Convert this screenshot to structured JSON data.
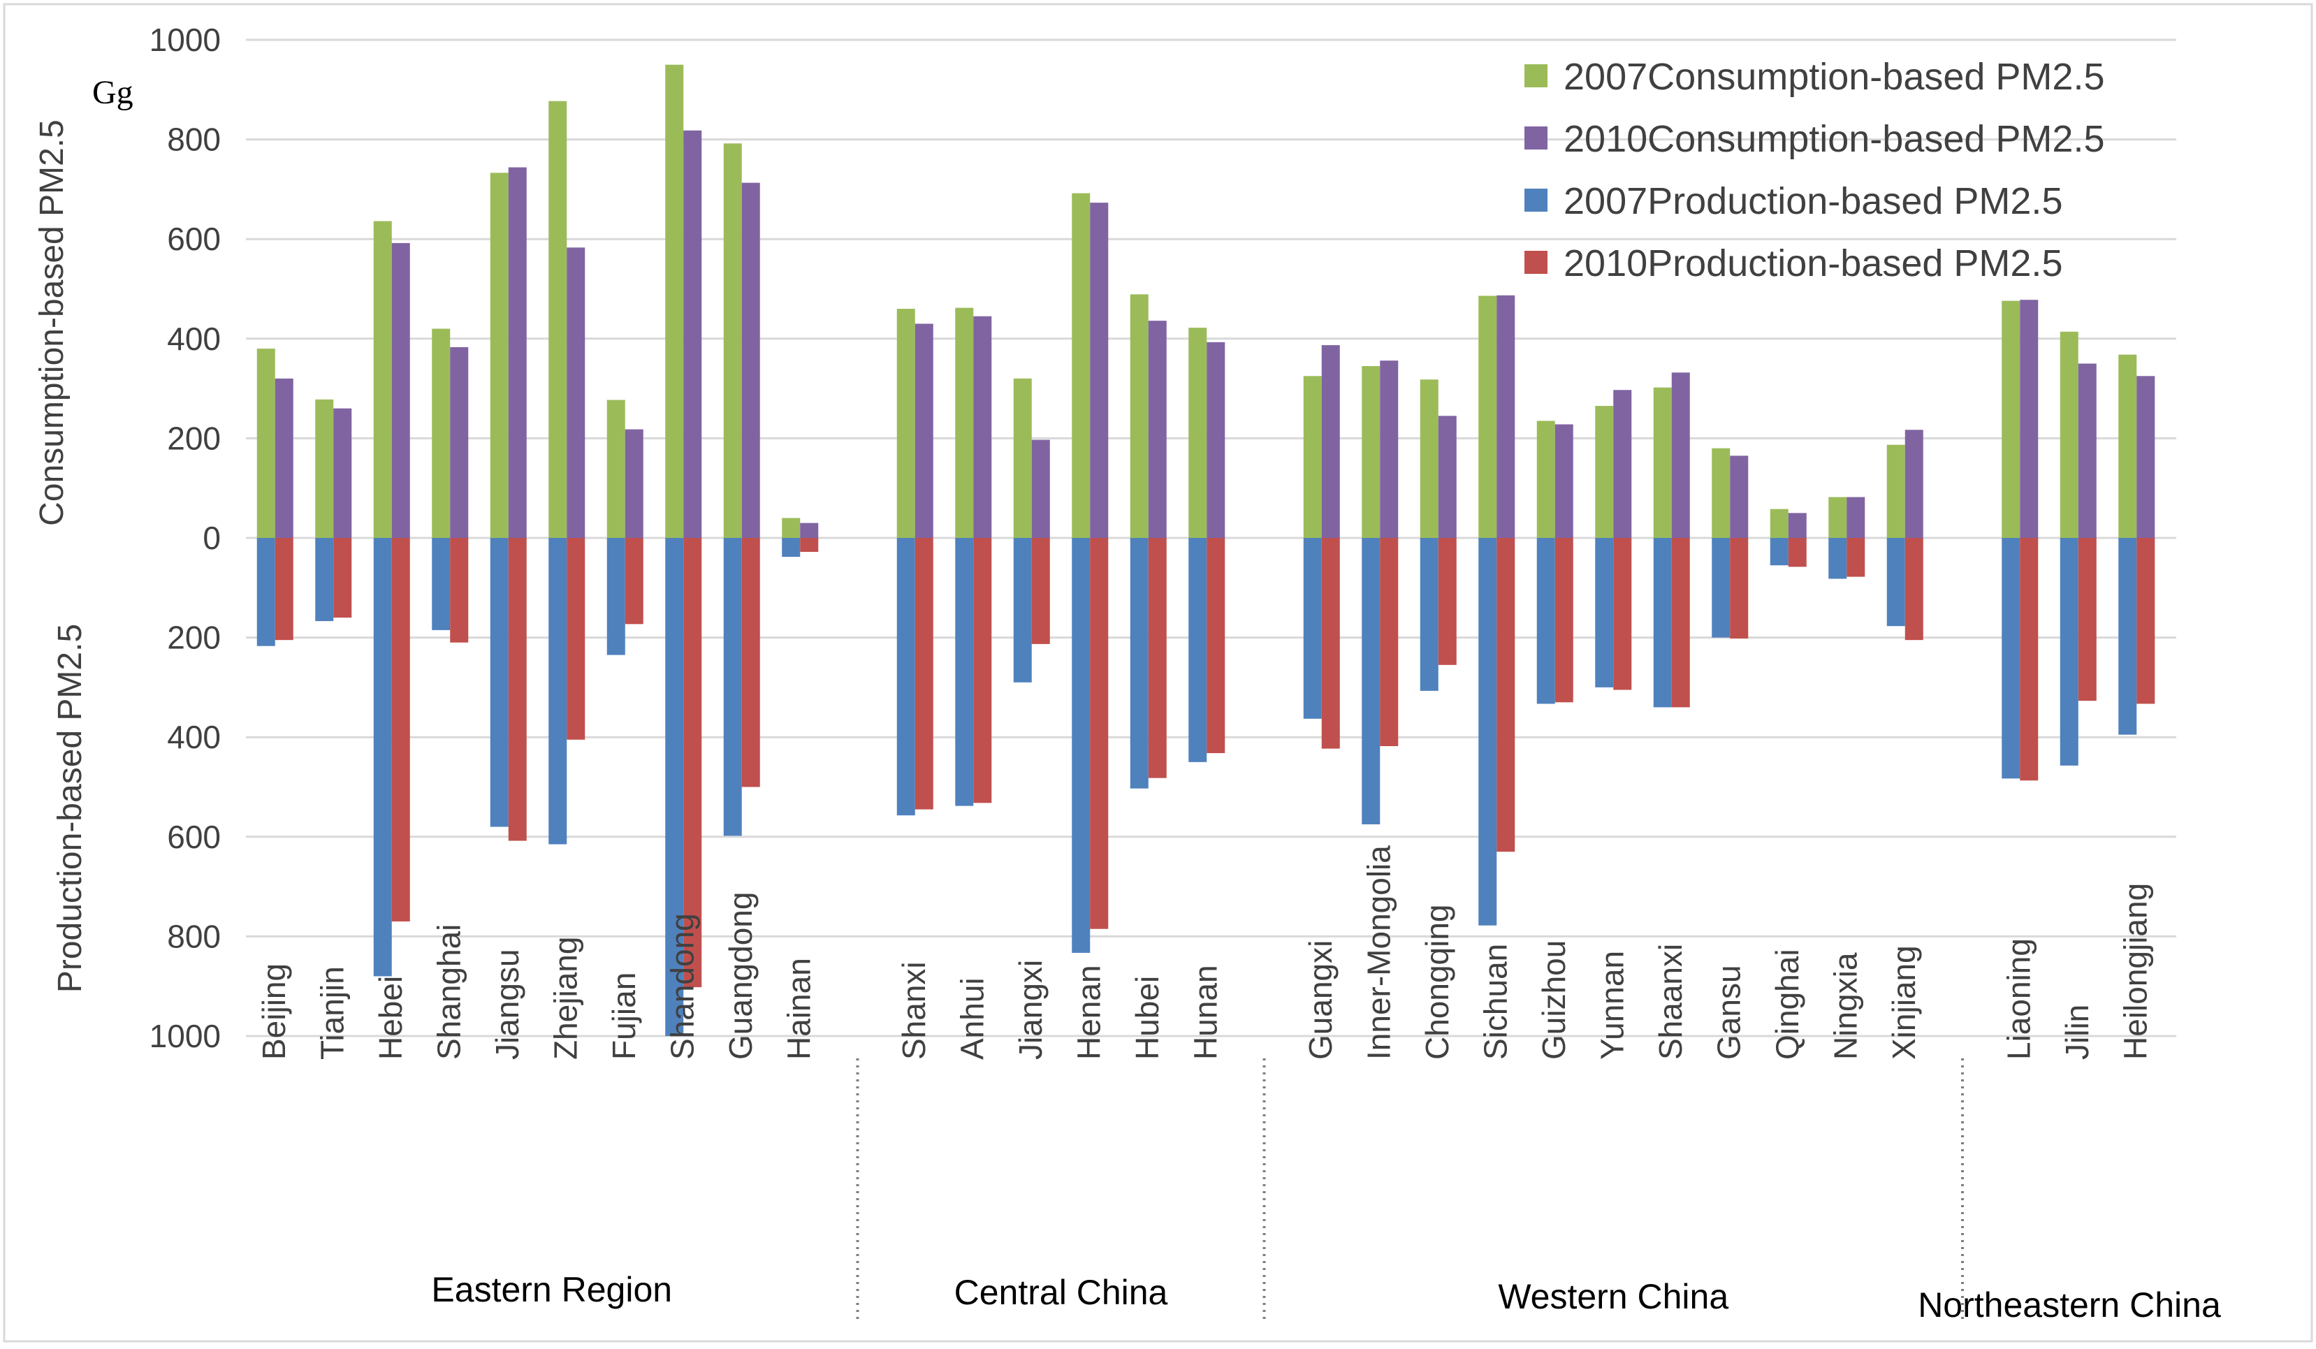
{
  "chart_data": {
    "type": "bar",
    "unit_label": "Gg",
    "ylabel_upper": "Consumption-based PM2.5",
    "ylabel_lower": "Production-based PM2.5",
    "ylim": [
      -1000,
      1000
    ],
    "yticks": [
      1000,
      800,
      600,
      400,
      200,
      0,
      200,
      400,
      600,
      800,
      1000
    ],
    "grid": true,
    "legend_position": "top-right",
    "colors": {
      "c2007": "#9BBB59",
      "c2010": "#8064A2",
      "p2007": "#4F81BD",
      "p2010": "#C0504D"
    },
    "categories": [
      "Beijing",
      "Tianjin",
      "Hebei",
      "Shanghai",
      "Jiangsu",
      "Zhejiang",
      "Fujian",
      "Shandong",
      "Guangdong",
      "Hainan",
      "Shanxi",
      "Anhui",
      "Jiangxi",
      "Henan",
      "Hubei",
      "Hunan",
      "Guangxi",
      "Inner-Mongolia",
      "Chongqing",
      "Sichuan",
      "Guizhou",
      "Yunnan",
      "Shaanxi",
      "Gansu",
      "Qinghai",
      "Ningxia",
      "Xinjiang",
      "Liaoning",
      "Jilin",
      "Heilongjiang"
    ],
    "series": [
      {
        "name": "2007Consumption-based PM2.5",
        "values": [
          380,
          278,
          636,
          420,
          733,
          877,
          277,
          950,
          792,
          40,
          460,
          462,
          320,
          692,
          489,
          422,
          325,
          345,
          318,
          486,
          235,
          265,
          302,
          180,
          58,
          82,
          187,
          476,
          414,
          368
        ]
      },
      {
        "name": "2010Consumption-based PM2.5",
        "values": [
          320,
          260,
          592,
          383,
          744,
          583,
          218,
          818,
          713,
          30,
          430,
          445,
          197,
          673,
          436,
          393,
          387,
          356,
          245,
          487,
          228,
          297,
          332,
          165,
          50,
          82,
          217,
          478,
          350,
          325
        ]
      },
      {
        "name": "2007Production-based PM2.5",
        "values": [
          -217,
          -167,
          -880,
          -185,
          -580,
          -615,
          -235,
          -1000,
          -598,
          -38,
          -557,
          -538,
          -290,
          -833,
          -503,
          -450,
          -363,
          -575,
          -307,
          -778,
          -333,
          -300,
          -340,
          -200,
          -55,
          -82,
          -177,
          -483,
          -457,
          -395
        ]
      },
      {
        "name": "2010Production-based PM2.5",
        "values": [
          -205,
          -160,
          -770,
          -210,
          -608,
          -405,
          -173,
          -902,
          -500,
          -28,
          -545,
          -532,
          -213,
          -785,
          -482,
          -432,
          -423,
          -418,
          -255,
          -630,
          -330,
          -305,
          -340,
          -202,
          -58,
          -78,
          -205,
          -487,
          -327,
          -333
        ]
      }
    ],
    "groups": [
      {
        "name": "Eastern Region",
        "start": 0,
        "end": 9
      },
      {
        "name": "Central China",
        "start": 10,
        "end": 15
      },
      {
        "name": "Western China",
        "start": 16,
        "end": 26
      },
      {
        "name": "Northeastern China",
        "start": 27,
        "end": 29
      }
    ]
  }
}
